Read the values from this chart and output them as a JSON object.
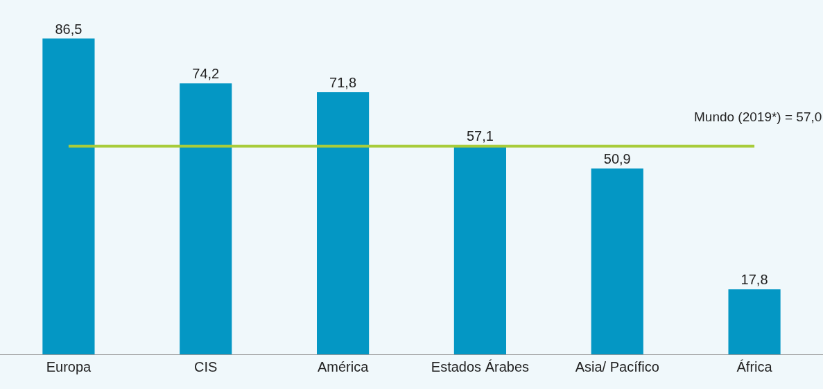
{
  "chart_data": {
    "type": "bar",
    "categories": [
      "Europa",
      "CIS",
      "América",
      "Estados Árabes",
      "Asia/ Pacífico",
      "África"
    ],
    "values": [
      86.5,
      74.2,
      71.8,
      57.1,
      50.9,
      17.8
    ],
    "value_labels": [
      "86,5",
      "74,2",
      "71,8",
      "57,1",
      "50,9",
      "17,8"
    ],
    "color": "#0497c4",
    "tick_labels": "x",
    "ref_lines": [
      {
        "axis": "y",
        "value": 57.0,
        "label": "Mundo (2019*) = 57,0",
        "color": "#a8cc3a"
      }
    ]
  }
}
